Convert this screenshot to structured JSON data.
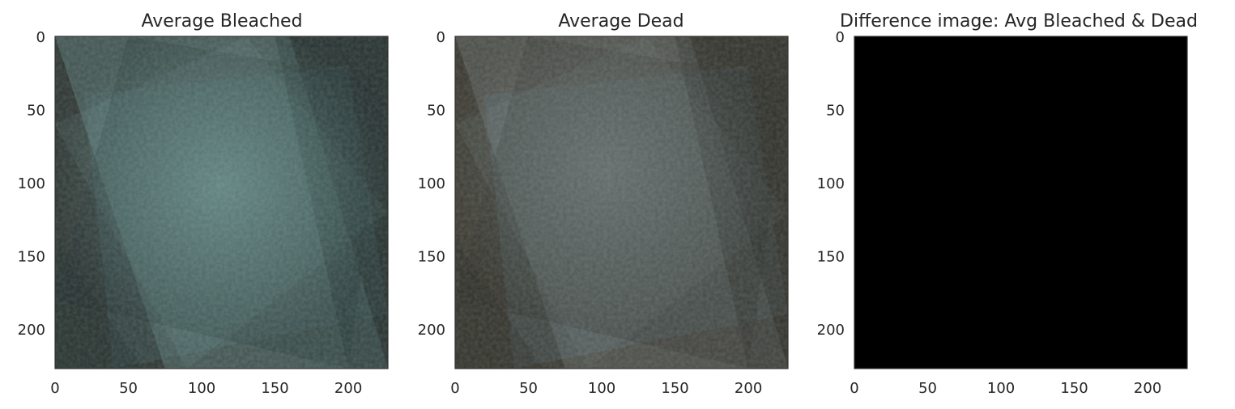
{
  "chart_data": [
    {
      "type": "heatmap",
      "title": "Average Bleached",
      "xlabel": "",
      "ylabel": "",
      "image_size": [
        227,
        227
      ],
      "xlim": [
        0,
        227
      ],
      "ylim": [
        227,
        0
      ],
      "xticks": [
        0,
        50,
        100,
        150,
        200
      ],
      "yticks": [
        0,
        50,
        100,
        150,
        200
      ],
      "grid": false,
      "palette": {
        "base": "#2c3532",
        "glow": "#7aa6a2",
        "shadow": "#1a2a2c",
        "accent": "#4e7c80"
      }
    },
    {
      "type": "heatmap",
      "title": "Average Dead",
      "xlabel": "",
      "ylabel": "",
      "image_size": [
        227,
        227
      ],
      "xlim": [
        0,
        227
      ],
      "ylim": [
        227,
        0
      ],
      "xticks": [
        0,
        50,
        100,
        150,
        200
      ],
      "yticks": [
        0,
        50,
        100,
        150,
        200
      ],
      "grid": false,
      "palette": {
        "base": "#38372f",
        "glow": "#7c8a8a",
        "shadow": "#262824",
        "accent": "#5c7f94"
      }
    },
    {
      "type": "heatmap",
      "title": "Difference image: Avg Bleached & Dead",
      "xlabel": "",
      "ylabel": "",
      "image_size": [
        227,
        227
      ],
      "xlim": [
        0,
        227
      ],
      "ylim": [
        227,
        0
      ],
      "xticks": [
        0,
        50,
        100,
        150,
        200
      ],
      "yticks": [
        0,
        50,
        100,
        150,
        200
      ],
      "grid": false,
      "palette": {
        "base": "#000000"
      }
    }
  ]
}
